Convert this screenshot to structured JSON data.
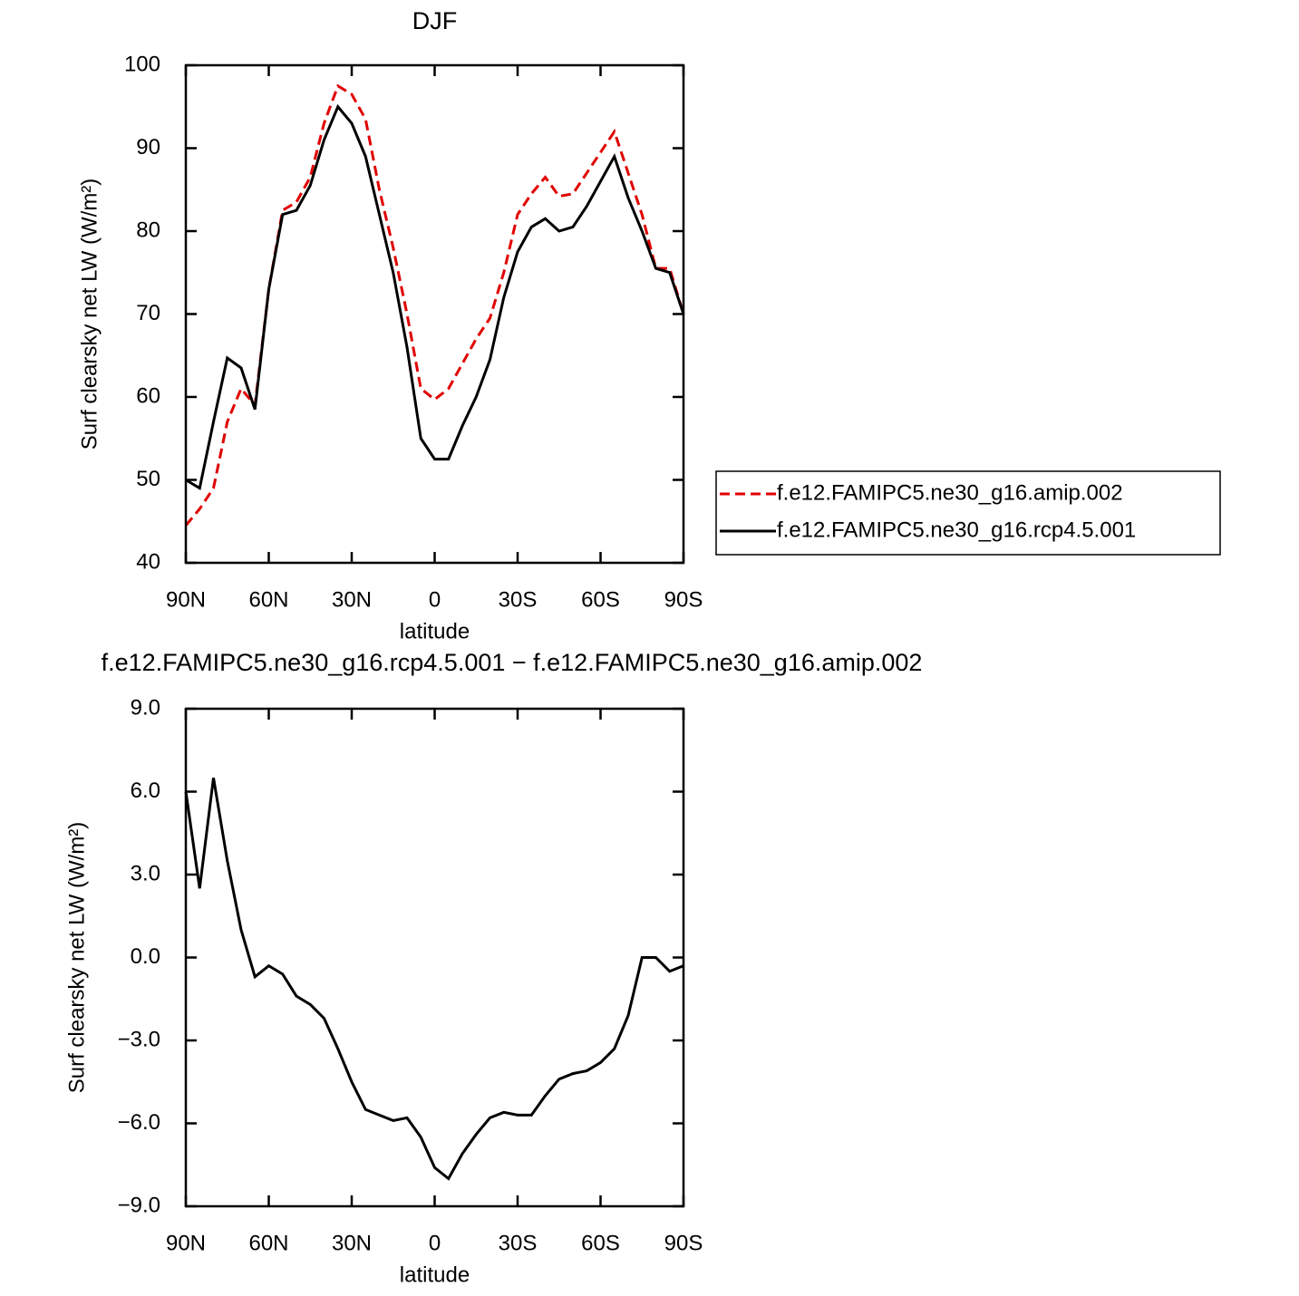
{
  "chart_data": [
    {
      "type": "line",
      "title": "DJF",
      "xlabel": "latitude",
      "ylabel": "Surf clearsky net LW (W/m²)",
      "x": [
        90,
        85,
        80,
        75,
        70,
        65,
        60,
        55,
        50,
        45,
        40,
        35,
        30,
        25,
        20,
        15,
        10,
        5,
        0,
        -5,
        -10,
        -15,
        -20,
        -25,
        -30,
        -35,
        -40,
        -45,
        -50,
        -55,
        -60,
        -65,
        -70,
        -75,
        -80,
        -85,
        -90
      ],
      "xlim": [
        90,
        -90
      ],
      "xticks": [
        {
          "value": 90,
          "label": "90N"
        },
        {
          "value": 60,
          "label": "60N"
        },
        {
          "value": 30,
          "label": "30N"
        },
        0,
        {
          "value": -30,
          "label": "30S"
        },
        {
          "value": -60,
          "label": "60S"
        },
        {
          "value": -90,
          "label": "90S"
        }
      ],
      "ylim": [
        40,
        100
      ],
      "yticks": [
        40,
        50,
        60,
        70,
        80,
        90,
        100
      ],
      "legend": "outside-right",
      "series": [
        {
          "name": "f.e12.FAMIPC5.ne30_g16.amip.002",
          "color": "#e00000",
          "style": "dashed",
          "values": [
            44.5,
            46.5,
            49,
            57,
            61,
            59,
            73,
            82.5,
            83.5,
            86.5,
            93,
            97.5,
            96.5,
            93.5,
            85,
            78,
            70,
            61,
            59.7,
            61,
            64,
            67,
            69.5,
            75,
            82,
            84.5,
            86.5,
            84.2,
            84.5,
            87,
            89.5,
            92,
            87,
            82,
            75.5,
            75.5,
            70
          ]
        },
        {
          "name": "f.e12.FAMIPC5.ne30_g16.rcp4.5.001",
          "color": "#000000",
          "style": "solid",
          "values": [
            50,
            49,
            57,
            64.7,
            63.5,
            58.5,
            73,
            82,
            82.5,
            85.5,
            91,
            95,
            93,
            89,
            82,
            75,
            66,
            55,
            52.5,
            52.5,
            56.5,
            60,
            64.5,
            72,
            77.5,
            80.5,
            81.5,
            80,
            80.5,
            83,
            86,
            89,
            84,
            80,
            75.5,
            75,
            70
          ]
        }
      ]
    },
    {
      "type": "line",
      "title": "f.e12.FAMIPC5.ne30_g16.rcp4.5.001 − f.e12.FAMIPC5.ne30_g16.amip.002",
      "xlabel": "latitude",
      "ylabel": "Surf clearsky net LW (W/m²)",
      "x": [
        90,
        85,
        80,
        75,
        70,
        65,
        60,
        55,
        50,
        45,
        40,
        35,
        30,
        25,
        20,
        15,
        10,
        5,
        0,
        -5,
        -10,
        -15,
        -20,
        -25,
        -30,
        -35,
        -40,
        -45,
        -50,
        -55,
        -60,
        -65,
        -70,
        -75,
        -80,
        -85,
        -90
      ],
      "xlim": [
        90,
        -90
      ],
      "xticks": [
        {
          "value": 90,
          "label": "90N"
        },
        {
          "value": 60,
          "label": "60N"
        },
        {
          "value": 30,
          "label": "30N"
        },
        0,
        {
          "value": -30,
          "label": "30S"
        },
        {
          "value": -60,
          "label": "60S"
        },
        {
          "value": -90,
          "label": "90S"
        }
      ],
      "ylim": [
        -9,
        9
      ],
      "yticks": [
        {
          "value": -9,
          "label": "−9.0"
        },
        {
          "value": -6,
          "label": "−6.0"
        },
        {
          "value": -3,
          "label": "−3.0"
        },
        {
          "value": 0,
          "label": "0.0"
        },
        {
          "value": 3,
          "label": "3.0"
        },
        {
          "value": 6,
          "label": "6.0"
        },
        {
          "value": 9,
          "label": "9.0"
        }
      ],
      "color": "#000000",
      "values": [
        6,
        2.5,
        6.5,
        3.5,
        1,
        -0.7,
        -0.3,
        -0.6,
        -1.4,
        -1.7,
        -2.2,
        -3.3,
        -4.5,
        -5.5,
        -5.7,
        -5.9,
        -5.8,
        -6.5,
        -7.6,
        -8,
        -7.1,
        -6.4,
        -5.8,
        -5.6,
        -5.7,
        -5.7,
        -5,
        -4.4,
        -4.2,
        -4.1,
        -3.8,
        -3.3,
        -2.1,
        0,
        0,
        -0.5,
        -0.3
      ]
    }
  ]
}
